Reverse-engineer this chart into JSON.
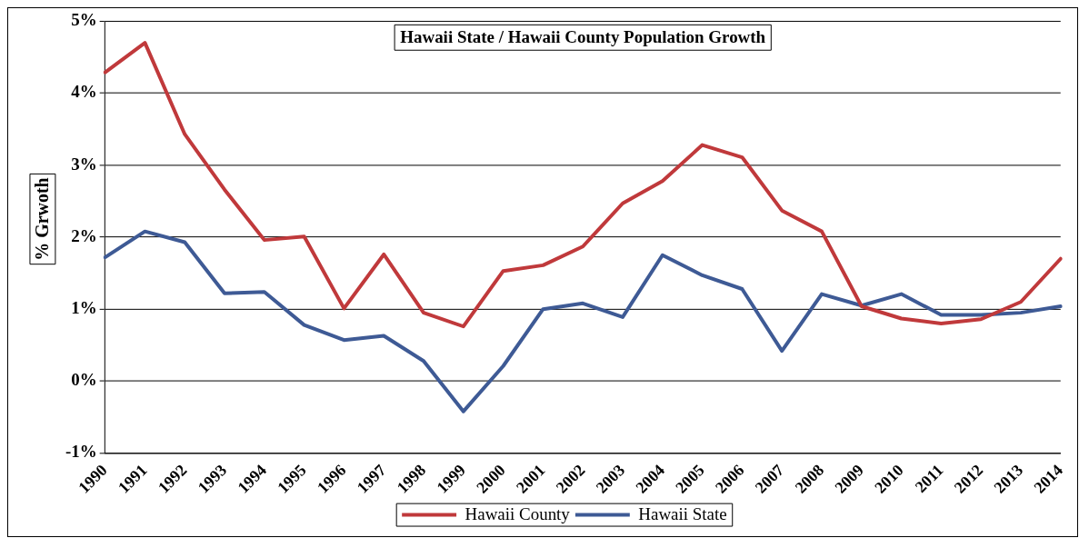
{
  "chart_data": {
    "type": "line",
    "title": "Hawaii State / Hawaii County Population Growth",
    "ylabel": "% Grwoth",
    "categories": [
      "1990",
      "1991",
      "1992",
      "1993",
      "1994",
      "1995",
      "1996",
      "1997",
      "1998",
      "1999",
      "2000",
      "2001",
      "2002",
      "2003",
      "2004",
      "2005",
      "2006",
      "2007",
      "2008",
      "2009",
      "2010",
      "2011",
      "2012",
      "2013",
      "2014"
    ],
    "series": [
      {
        "name": "Hawaii County",
        "color": "#c0393b",
        "values": [
          4.29,
          4.7,
          3.43,
          2.66,
          1.96,
          2.01,
          1.01,
          1.76,
          0.95,
          0.76,
          1.53,
          1.61,
          1.87,
          2.47,
          2.78,
          3.28,
          3.11,
          2.37,
          2.08,
          1.04,
          0.87,
          0.8,
          0.86,
          1.1,
          1.7
        ]
      },
      {
        "name": "Hawaii State",
        "color": "#3e5a95",
        "values": [
          1.72,
          2.08,
          1.93,
          1.22,
          1.24,
          0.78,
          0.57,
          0.63,
          0.28,
          -0.42,
          0.21,
          1.0,
          1.08,
          0.89,
          1.75,
          1.47,
          1.28,
          0.42,
          1.21,
          1.05,
          1.21,
          0.92,
          0.92,
          0.95,
          1.04
        ]
      }
    ],
    "ylim": [
      -1,
      5
    ],
    "yticks": [
      {
        "value": -1,
        "label": "-1%"
      },
      {
        "value": 0,
        "label": "0%"
      },
      {
        "value": 1,
        "label": "1%"
      },
      {
        "value": 2,
        "label": "2%"
      },
      {
        "value": 3,
        "label": "3%"
      },
      {
        "value": 4,
        "label": "4%"
      },
      {
        "value": 5,
        "label": "5%"
      }
    ],
    "grid": "y",
    "legend": "bottom",
    "marker": "none",
    "line_style": "solid"
  }
}
